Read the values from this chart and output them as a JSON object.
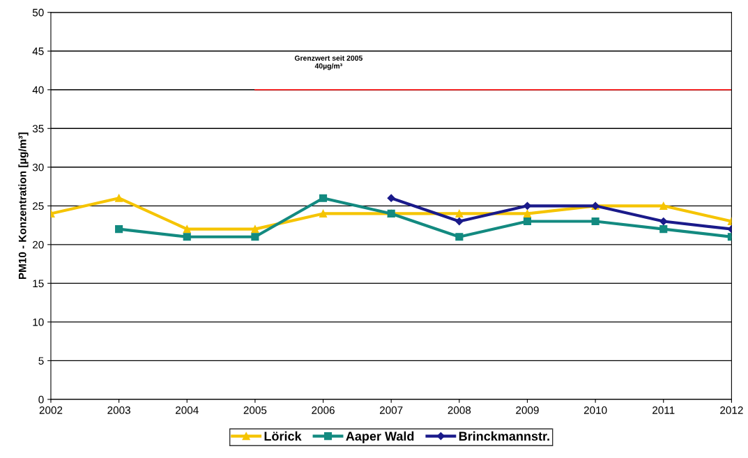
{
  "chart_data": {
    "type": "line",
    "ylabel": "PM10 - Konzentration [µg/m³]",
    "x": [
      2002,
      2003,
      2004,
      2005,
      2006,
      2007,
      2008,
      2009,
      2010,
      2011,
      2012
    ],
    "xlim": [
      2002,
      2012
    ],
    "xticks": [
      2002,
      2003,
      2004,
      2005,
      2006,
      2007,
      2008,
      2009,
      2010,
      2011,
      2012
    ],
    "ylim": [
      0,
      50
    ],
    "yticks": [
      0,
      5,
      10,
      15,
      20,
      25,
      30,
      35,
      40,
      45,
      50
    ],
    "grid": "y",
    "legend": "bottom",
    "series": [
      {
        "name": "Lörick",
        "color": "#f5c400",
        "marker": "triangle",
        "values": [
          24,
          26,
          22,
          22,
          24,
          24,
          24,
          24,
          25,
          25,
          23
        ]
      },
      {
        "name": "Aaper Wald",
        "color": "#138a80",
        "marker": "square",
        "values": [
          null,
          22,
          21,
          21,
          26,
          24,
          21,
          23,
          23,
          22,
          21
        ]
      },
      {
        "name": "Brinckmannstr.",
        "color": "#1a1a8a",
        "marker": "diamond",
        "values": [
          null,
          null,
          null,
          null,
          null,
          26,
          23,
          25,
          25,
          23,
          22
        ]
      },
      {
        "color": "#ff0000",
        "marker": "none",
        "x": [
          2005,
          2012
        ],
        "values": [
          40,
          40
        ]
      }
    ],
    "annotations": [
      "Grenzwert seit 2005\n40µg/m³"
    ]
  }
}
